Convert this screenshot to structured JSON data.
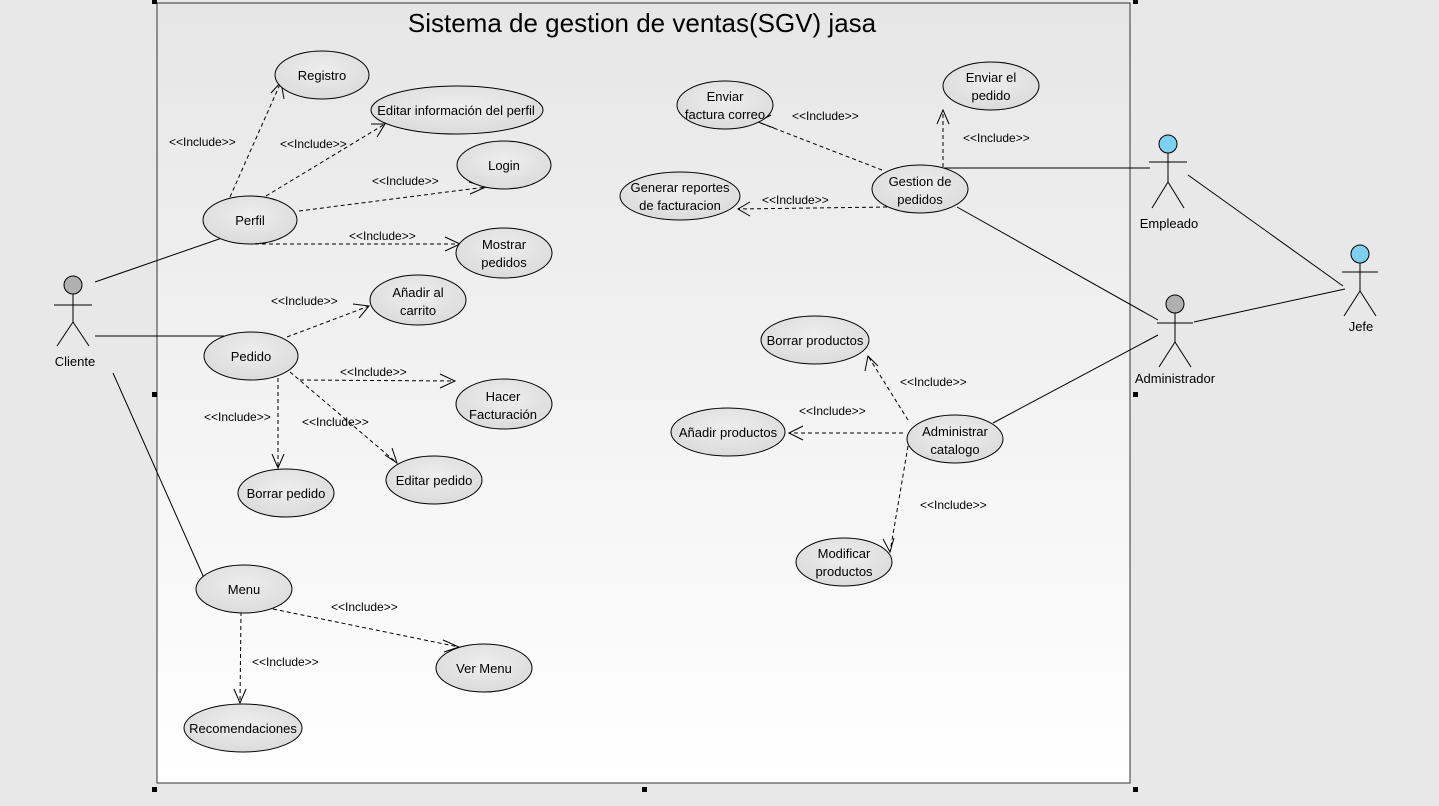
{
  "diagram": {
    "title": "Sistema de gestion de ventas(SGV) jasa",
    "stereotype": "<<Include>>",
    "actors": {
      "cliente": "Cliente",
      "empleado": "Empleado",
      "administrador": "Administrador",
      "jefe": "Jefe"
    },
    "use_cases": {
      "registro": "Registro",
      "editar_perfil": "Editar información del perfil",
      "login": "Login",
      "perfil": "Perfil",
      "mostrar_pedidos": [
        "Mostrar",
        "pedidos"
      ],
      "anadir_carrito": [
        "Añadir al",
        "carrito"
      ],
      "pedido": "Pedido",
      "hacer_facturacion": [
        "Hacer",
        "Facturación"
      ],
      "borrar_pedido": "Borrar pedido",
      "editar_pedido": "Editar pedido",
      "menu": "Menu",
      "ver_menu": "Ver Menu",
      "recomendaciones": "Recomendaciones",
      "enviar_factura": [
        "Enviar",
        "factura correo"
      ],
      "enviar_pedido": [
        "Enviar el",
        "pedido"
      ],
      "generar_reportes": [
        "Generar reportes",
        "de facturacion"
      ],
      "gestion_pedidos": [
        "Gestion de",
        "pedidos"
      ],
      "borrar_productos": "Borrar productos",
      "anadir_productos": "Añadir productos",
      "administrar_catalogo": [
        "Administrar",
        "catalogo"
      ],
      "modificar_productos": [
        "Modificar",
        "productos"
      ]
    },
    "colors": {
      "actor_head_gray": "#b0b0b0",
      "actor_head_blue": "#7fd0f0",
      "boundary_fill_top": "#e6e6e6",
      "boundary_fill_bottom": "#ffffff",
      "use_case_fill": "#e2e2e2"
    }
  }
}
